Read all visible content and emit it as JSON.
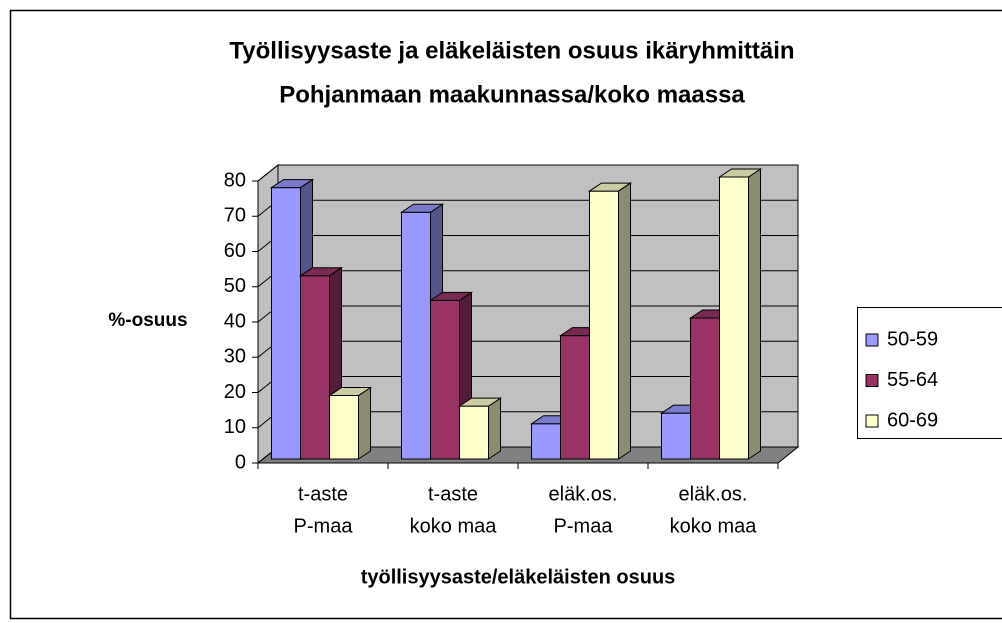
{
  "chart_data": {
    "type": "bar3d",
    "title": [
      "Työllisyysaste ja eläkeläisten osuus ikäryhmittäin",
      "Pohjanmaan maakunnassa/koko maassa"
    ],
    "categories": [
      [
        "t-aste",
        "P-maa"
      ],
      [
        "t-aste",
        "koko maa"
      ],
      [
        "eläk.os.",
        "P-maa"
      ],
      [
        "eläk.os.",
        "koko maa"
      ]
    ],
    "series": [
      {
        "name": "50-59",
        "color": "#9999ff",
        "values": [
          77,
          70,
          10,
          13
        ]
      },
      {
        "name": "55-64",
        "color": "#993366",
        "values": [
          52,
          45,
          35,
          40
        ]
      },
      {
        "name": "60-69",
        "color": "#ffffcc",
        "values": [
          18,
          15,
          76,
          80
        ]
      }
    ],
    "ylabel": "%-osuus",
    "xlabel": "työllisyysaste/eläkeläisten osuus",
    "ylim": [
      0,
      80
    ],
    "yticks": [
      0,
      10,
      20,
      30,
      40,
      50,
      60,
      70,
      80
    ],
    "grid": true,
    "legend": "right"
  }
}
